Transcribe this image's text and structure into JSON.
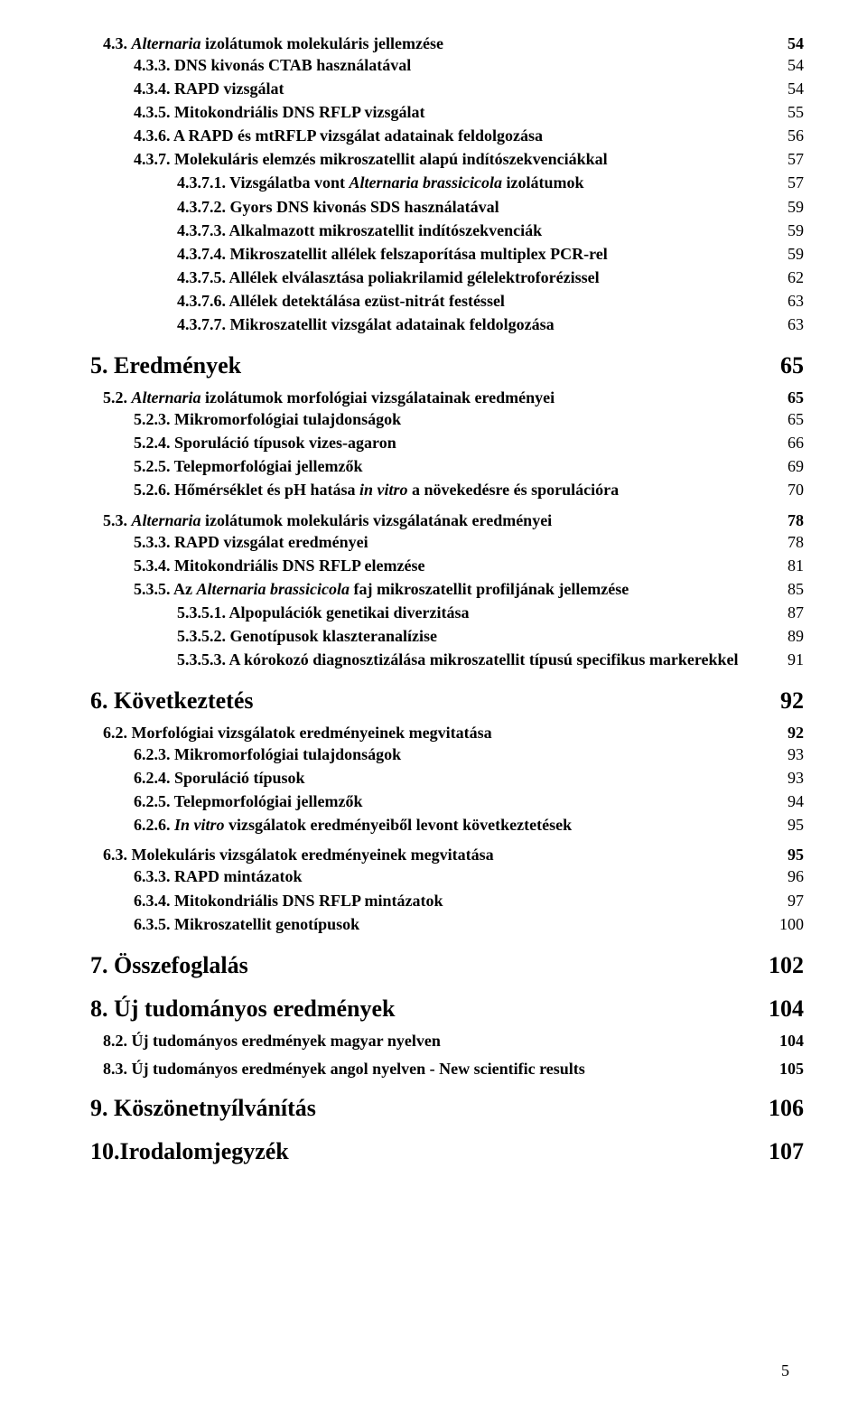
{
  "entries": [
    {
      "level": 2,
      "text": "4.3. <span class=\"section-i\">Alternaria</span> izolátumok molekuláris jellemzése",
      "page": "54"
    },
    {
      "level": 3,
      "text": "4.3.3. DNS kivonás CTAB használatával",
      "page": "54"
    },
    {
      "level": 3,
      "text": "4.3.4. RAPD vizsgálat",
      "page": "54"
    },
    {
      "level": 3,
      "text": "4.3.5. Mitokondriális DNS RFLP vizsgálat",
      "page": "55"
    },
    {
      "level": 3,
      "text": "4.3.6. A RAPD és mtRFLP vizsgálat adatainak feldolgozása",
      "page": "56"
    },
    {
      "level": 3,
      "text": "4.3.7. Molekuláris elemzés mikroszatellit alapú indítószekvenciákkal",
      "page": "57"
    },
    {
      "level": 4,
      "text": "4.3.7.1. Vizsgálatba vont <span class=\"section-i\">Alternaria brassicicola</span> izolátumok",
      "page": "57"
    },
    {
      "level": 4,
      "text": "4.3.7.2. Gyors DNS kivonás SDS használatával",
      "page": "59"
    },
    {
      "level": 4,
      "text": "4.3.7.3. Alkalmazott mikroszatellit indítószekvenciák",
      "page": "59"
    },
    {
      "level": 4,
      "text": "4.3.7.4. Mikroszatellit allélek felszaporítása multiplex PCR-rel",
      "page": "59"
    },
    {
      "level": 4,
      "text": "4.3.7.5. Allélek elválasztása poliakrilamid gélelektroforézissel",
      "page": "62"
    },
    {
      "level": 4,
      "text": "4.3.7.6. Allélek detektálása ezüst-nitrát festéssel",
      "page": "63"
    },
    {
      "level": 4,
      "text": "4.3.7.7. Mikroszatellit vizsgálat adatainak feldolgozása",
      "page": "63"
    },
    {
      "level": 1,
      "text": "5. Eredmények",
      "page": "65"
    },
    {
      "level": 2,
      "text": "5.2. <span class=\"section-i\">Alternaria</span> izolátumok morfológiai vizsgálatainak eredményei",
      "page": "65"
    },
    {
      "level": 3,
      "text": "5.2.3. Mikromorfológiai tulajdonságok",
      "page": "65"
    },
    {
      "level": 3,
      "text": "5.2.4. Sporuláció típusok vizes-agaron",
      "page": "66"
    },
    {
      "level": 3,
      "text": "5.2.5. Telepmorfológiai jellemzők",
      "page": "69"
    },
    {
      "level": 3,
      "text": "5.2.6. Hőmérséklet és pH hatása <span class=\"section-i\">in vitro</span> a növekedésre és sporulációra",
      "page": "70"
    },
    {
      "level": 2,
      "text": "5.3. <span class=\"section-i\">Alternaria</span> izolátumok molekuláris vizsgálatának eredményei",
      "page": "78"
    },
    {
      "level": 3,
      "text": "5.3.3. RAPD vizsgálat eredményei",
      "page": "78"
    },
    {
      "level": 3,
      "text": "5.3.4. Mitokondriális DNS RFLP elemzése",
      "page": "81"
    },
    {
      "level": 3,
      "text": "5.3.5. Az <span class=\"section-i\">Alternaria brassicicola</span> faj mikroszatellit profiljának jellemzése",
      "page": "85"
    },
    {
      "level": 4,
      "text": "5.3.5.1. Alpopulációk genetikai diverzitása",
      "page": "87"
    },
    {
      "level": 4,
      "text": "5.3.5.2. Genotípusok klaszteranalízise",
      "page": "89"
    },
    {
      "level": 4,
      "text": "5.3.5.3. A kórokozó diagnosztizálása mikroszatellit típusú specifikus markerekkel",
      "page": "91"
    },
    {
      "level": 1,
      "text": "6. Következtetés",
      "page": "92"
    },
    {
      "level": 2,
      "text": "6.2. Morfológiai vizsgálatok eredményeinek megvitatása",
      "page": "92"
    },
    {
      "level": 3,
      "text": "6.2.3. Mikromorfológiai tulajdonságok",
      "page": "93"
    },
    {
      "level": 3,
      "text": "6.2.4. Sporuláció típusok",
      "page": "93"
    },
    {
      "level": 3,
      "text": "6.2.5. Telepmorfológiai jellemzők",
      "page": "94"
    },
    {
      "level": 3,
      "text": "6.2.6. <span class=\"section-i\">In vitro</span> vizsgálatok eredményeiből levont következtetések",
      "page": "95"
    },
    {
      "level": 2,
      "text": "6.3. Molekuláris vizsgálatok eredményeinek megvitatása",
      "page": "95"
    },
    {
      "level": 3,
      "text": "6.3.3. RAPD mintázatok",
      "page": "96"
    },
    {
      "level": 3,
      "text": "6.3.4. Mitokondriális DNS RFLP mintázatok",
      "page": "97"
    },
    {
      "level": 3,
      "text": "6.3.5. Mikroszatellit genotípusok",
      "page": "100"
    },
    {
      "level": 1,
      "text": "7. Összefoglalás",
      "page": "102"
    },
    {
      "level": 1,
      "text": "8. Új tudományos eredmények",
      "page": "104"
    },
    {
      "level": 2,
      "text": "8.2. Új tudományos eredmények magyar nyelven",
      "page": "104"
    },
    {
      "level": 2,
      "text": "8.3. Új tudományos eredmények angol nyelven - New scientific results",
      "page": "105"
    },
    {
      "level": 1,
      "text": "9. Köszönetnyílvánítás",
      "page": "106"
    },
    {
      "level": 1,
      "text": "10.Irodalomjegyzék",
      "page": "107"
    }
  ],
  "page_number": "5",
  "colors": {
    "text": "#000000",
    "bg": "#ffffff"
  },
  "font": {
    "family": "Times New Roman",
    "base_size_pt": 12
  }
}
